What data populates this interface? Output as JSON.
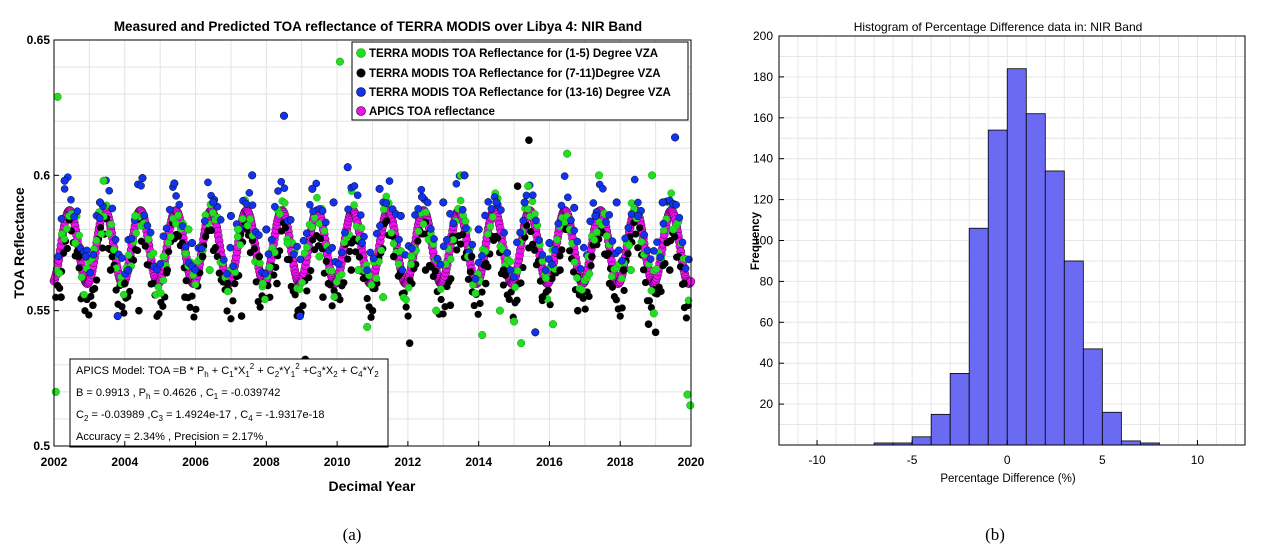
{
  "chart_data": [
    {
      "type": "scatter",
      "title": "Measured and Predicted TOA reflectance of TERRA MODIS over Libya 4: NIR Band",
      "xlabel": "Decimal Year",
      "ylabel": "TOA Reflectance",
      "xlim": [
        2002,
        2020
      ],
      "ylim": [
        0.5,
        0.65
      ],
      "xticks": [
        "2002",
        "2004",
        "2006",
        "2008",
        "2010",
        "2012",
        "2014",
        "2016",
        "2018",
        "2020"
      ],
      "yticks": [
        "0.5",
        "0.55",
        "0.6",
        "0.65"
      ],
      "grid": true,
      "legend_position": "top-right",
      "series": [
        {
          "name": "TERRA MODIS TOA Reflectance for (1-5) Degree VZA",
          "color": "#22dd22",
          "x": [
            2002.05,
            2002.1,
            2002.6,
            2003.4,
            2003.9,
            2004.3,
            2005.1,
            2005.8,
            2006.4,
            2007.2,
            2007.9,
            2008.6,
            2009.5,
            2010.08,
            2010.6,
            2010.85,
            2011.3,
            2012.1,
            2012.8,
            2013.5,
            2013.7,
            2014.1,
            2014.6,
            2015.0,
            2015.2,
            2015.4,
            2015.9,
            2016.1,
            2016.5,
            2017.1,
            2017.4,
            2018.3,
            2018.9,
            2018.95,
            2019.5,
            2019.9,
            2019.98
          ],
          "y": [
            0.52,
            0.629,
            0.575,
            0.598,
            0.56,
            0.585,
            0.57,
            0.58,
            0.565,
            0.58,
            0.56,
            0.575,
            0.57,
            0.642,
            0.565,
            0.544,
            0.555,
            0.57,
            0.55,
            0.6,
            0.57,
            0.541,
            0.55,
            0.546,
            0.538,
            0.596,
            0.562,
            0.545,
            0.608,
            0.57,
            0.6,
            0.565,
            0.6,
            0.549,
            0.58,
            0.519,
            0.515
          ]
        },
        {
          "name": "TERRA MODIS TOA Reflectance for (7-11)Degree VZA",
          "color": "#000000",
          "x": [
            2002.2,
            2002.7,
            2003.1,
            2003.6,
            2004.0,
            2004.4,
            2005.2,
            2005.7,
            2006.2,
            2006.9,
            2007.3,
            2007.8,
            2008.3,
            2008.9,
            2009.1,
            2009.6,
            2010.4,
            2011.0,
            2011.6,
            2012.05,
            2012.5,
            2013.2,
            2013.8,
            2014.2,
            2014.7,
            2015.1,
            2015.42,
            2015.8,
            2016.3,
            2016.8,
            2017.2,
            2017.7,
            2018.1,
            2018.8,
            2019.0,
            2019.4,
            2019.8
          ],
          "y": [
            0.555,
            0.57,
            0.552,
            0.565,
            0.56,
            0.55,
            0.565,
            0.555,
            0.57,
            0.56,
            0.548,
            0.57,
            0.56,
            0.55,
            0.532,
            0.555,
            0.565,
            0.55,
            0.57,
            0.538,
            0.565,
            0.552,
            0.57,
            0.56,
            0.565,
            0.596,
            0.613,
            0.555,
            0.565,
            0.55,
            0.57,
            0.56,
            0.565,
            0.545,
            0.542,
            0.565,
            0.56
          ]
        },
        {
          "name": "TERRA MODIS TOA Reflectance for (13-16) Degree VZA",
          "color": "#1133ee",
          "x": [
            2002.3,
            2002.9,
            2003.3,
            2003.8,
            2004.1,
            2004.5,
            2005.4,
            2005.9,
            2006.5,
            2007.0,
            2007.6,
            2008.0,
            2008.5,
            2008.95,
            2009.3,
            2009.9,
            2010.3,
            2010.7,
            2011.2,
            2011.8,
            2012.4,
            2013.0,
            2013.6,
            2014.0,
            2014.5,
            2015.3,
            2015.6,
            2016.0,
            2016.7,
            2017.3,
            2017.9,
            2018.5,
            2019.2,
            2019.55
          ],
          "y": [
            0.598,
            0.57,
            0.59,
            0.548,
            0.565,
            0.599,
            0.597,
            0.575,
            0.59,
            0.585,
            0.6,
            0.58,
            0.622,
            0.548,
            0.595,
            0.59,
            0.603,
            0.575,
            0.595,
            0.585,
            0.592,
            0.59,
            0.6,
            0.58,
            0.59,
            0.59,
            0.542,
            0.575,
            0.588,
            0.585,
            0.59,
            0.585,
            0.59,
            0.614
          ]
        },
        {
          "name": "APICS TOA reflectance",
          "color": "#ee11ee"
        }
      ],
      "annotation": {
        "model_label": "APICS Model: TOA =B * P",
        "line2": "B  = 0.9913 ,  P",
        "line2_mid": " = 0.4626 , C",
        "line2_end": " = -0.039742",
        "line3_a": "C",
        "line3_b": " = -0.03989 ,C",
        "line3_c": " = 1.4924e-17 ,  C",
        "line3_d": " = -1.9317e-18",
        "line4": "Accuracy = 2.34% ,  Precision  = 2.17%"
      },
      "panel_label": "(a)"
    },
    {
      "type": "bar",
      "title": "Histogram of Percentage Difference data in: NIR Band",
      "xlabel": "Percentage Difference (%)",
      "ylabel": "Frequency",
      "xlim": [
        -12,
        12.5
      ],
      "ylim": [
        0,
        200
      ],
      "xticks": [
        "-10",
        "-5",
        "0",
        "5",
        "10"
      ],
      "yticks": [
        "20",
        "40",
        "60",
        "80",
        "100",
        "120",
        "140",
        "160",
        "180",
        "200"
      ],
      "grid": true,
      "bin_width": 1,
      "bin_left_edges": [
        -8,
        -7,
        -6,
        -5,
        -4,
        -3,
        -2,
        -1,
        0,
        1,
        2,
        3,
        4,
        5,
        6,
        7
      ],
      "values": [
        0,
        1,
        1,
        4,
        15,
        35,
        106,
        154,
        184,
        162,
        134,
        90,
        47,
        16,
        2,
        1
      ],
      "bar_color": "#6a6af2",
      "panel_label": "(b)"
    }
  ]
}
